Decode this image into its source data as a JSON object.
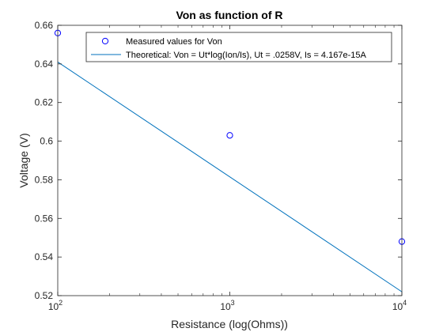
{
  "chart_data": {
    "type": "line",
    "title": "Von as function of R",
    "xlabel": "Resistance (log(Ohms))",
    "ylabel": "Voltage (V)",
    "x_scale": "log",
    "xlim": [
      100,
      10000
    ],
    "ylim": [
      0.52,
      0.66
    ],
    "x_ticks": [
      100,
      1000,
      10000
    ],
    "x_tick_labels": [
      {
        "base": "10",
        "exp": "2"
      },
      {
        "base": "10",
        "exp": "3"
      },
      {
        "base": "10",
        "exp": "4"
      }
    ],
    "y_ticks": [
      "0.52",
      "0.54",
      "0.56",
      "0.58",
      "0.6",
      "0.62",
      "0.64",
      "0.66"
    ],
    "grid": false,
    "legend_position": "top-right",
    "series": [
      {
        "name": "Measured values for Von",
        "kind": "scatter",
        "marker": "circle",
        "color": "#0000ff",
        "x": [
          100,
          1000,
          10000
        ],
        "y": [
          0.656,
          0.603,
          0.548
        ]
      },
      {
        "name": "Theoretical: Von = Ut*log(Ion/Is), Ut = .0258V, Is = 4.167e-15A",
        "kind": "line",
        "color": "#0072bd",
        "x": [
          100,
          10000
        ],
        "y": [
          0.641,
          0.522
        ]
      }
    ]
  }
}
